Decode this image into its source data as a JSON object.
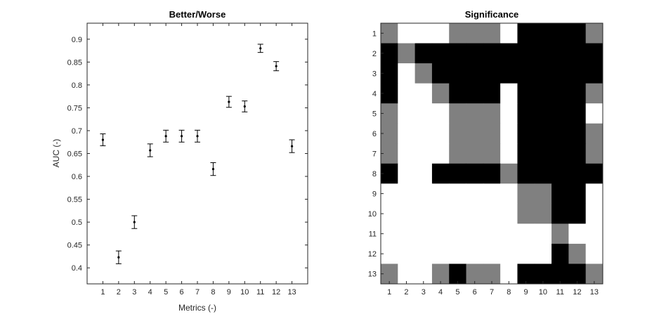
{
  "chart_data": [
    {
      "type": "scatter",
      "title": "Better/Worse",
      "xlabel": "Metrics (-)",
      "ylabel": "AUC (-)",
      "x": [
        1,
        2,
        3,
        4,
        5,
        6,
        7,
        8,
        9,
        10,
        11,
        12,
        13
      ],
      "y": [
        0.68,
        0.423,
        0.5,
        0.657,
        0.688,
        0.688,
        0.688,
        0.616,
        0.763,
        0.753,
        0.88,
        0.841,
        0.666
      ],
      "err": [
        0.013,
        0.014,
        0.014,
        0.014,
        0.013,
        0.013,
        0.013,
        0.014,
        0.012,
        0.012,
        0.009,
        0.01,
        0.014
      ],
      "xlim": [
        0,
        14
      ],
      "ylim": [
        0.365,
        0.935
      ],
      "xticks": [
        "1",
        "2",
        "3",
        "4",
        "5",
        "6",
        "7",
        "8",
        "9",
        "10",
        "11",
        "12",
        "13"
      ],
      "yticks": [
        "0.4",
        "0.45",
        "0.5",
        "0.55",
        "0.6",
        "0.65",
        "0.7",
        "0.75",
        "0.8",
        "0.85",
        "0.9"
      ],
      "ytick_values": [
        0.4,
        0.45,
        0.5,
        0.55,
        0.6,
        0.65,
        0.7,
        0.75,
        0.8,
        0.85,
        0.9
      ],
      "grid": false,
      "marker_color": "#000000"
    },
    {
      "type": "heatmap",
      "title": "Significance",
      "xticks": [
        "1",
        "2",
        "3",
        "4",
        "5",
        "6",
        "7",
        "8",
        "9",
        "10",
        "11",
        "12",
        "13"
      ],
      "yticks": [
        "1",
        "2",
        "3",
        "4",
        "5",
        "6",
        "7",
        "8",
        "9",
        "10",
        "11",
        "12",
        "13"
      ],
      "levels": {
        "0": "#ffffff",
        "1": "#808080",
        "2": "#000000"
      },
      "matrix": [
        [
          1,
          0,
          0,
          0,
          1,
          1,
          1,
          0,
          2,
          2,
          2,
          2,
          1
        ],
        [
          2,
          1,
          2,
          2,
          2,
          2,
          2,
          2,
          2,
          2,
          2,
          2,
          2
        ],
        [
          2,
          0,
          1,
          2,
          2,
          2,
          2,
          2,
          2,
          2,
          2,
          2,
          2
        ],
        [
          2,
          0,
          0,
          1,
          2,
          2,
          2,
          0,
          2,
          2,
          2,
          2,
          1
        ],
        [
          1,
          0,
          0,
          0,
          1,
          1,
          1,
          0,
          2,
          2,
          2,
          2,
          0
        ],
        [
          1,
          0,
          0,
          0,
          1,
          1,
          1,
          0,
          2,
          2,
          2,
          2,
          1
        ],
        [
          1,
          0,
          0,
          0,
          1,
          1,
          1,
          0,
          2,
          2,
          2,
          2,
          1
        ],
        [
          2,
          0,
          0,
          2,
          2,
          2,
          2,
          1,
          2,
          2,
          2,
          2,
          2
        ],
        [
          0,
          0,
          0,
          0,
          0,
          0,
          0,
          0,
          1,
          1,
          2,
          2,
          0
        ],
        [
          0,
          0,
          0,
          0,
          0,
          0,
          0,
          0,
          1,
          1,
          2,
          2,
          0
        ],
        [
          0,
          0,
          0,
          0,
          0,
          0,
          0,
          0,
          0,
          0,
          1,
          0,
          0
        ],
        [
          0,
          0,
          0,
          0,
          0,
          0,
          0,
          0,
          0,
          0,
          2,
          1,
          0
        ],
        [
          1,
          0,
          0,
          1,
          2,
          1,
          1,
          0,
          2,
          2,
          2,
          2,
          1
        ]
      ]
    }
  ]
}
